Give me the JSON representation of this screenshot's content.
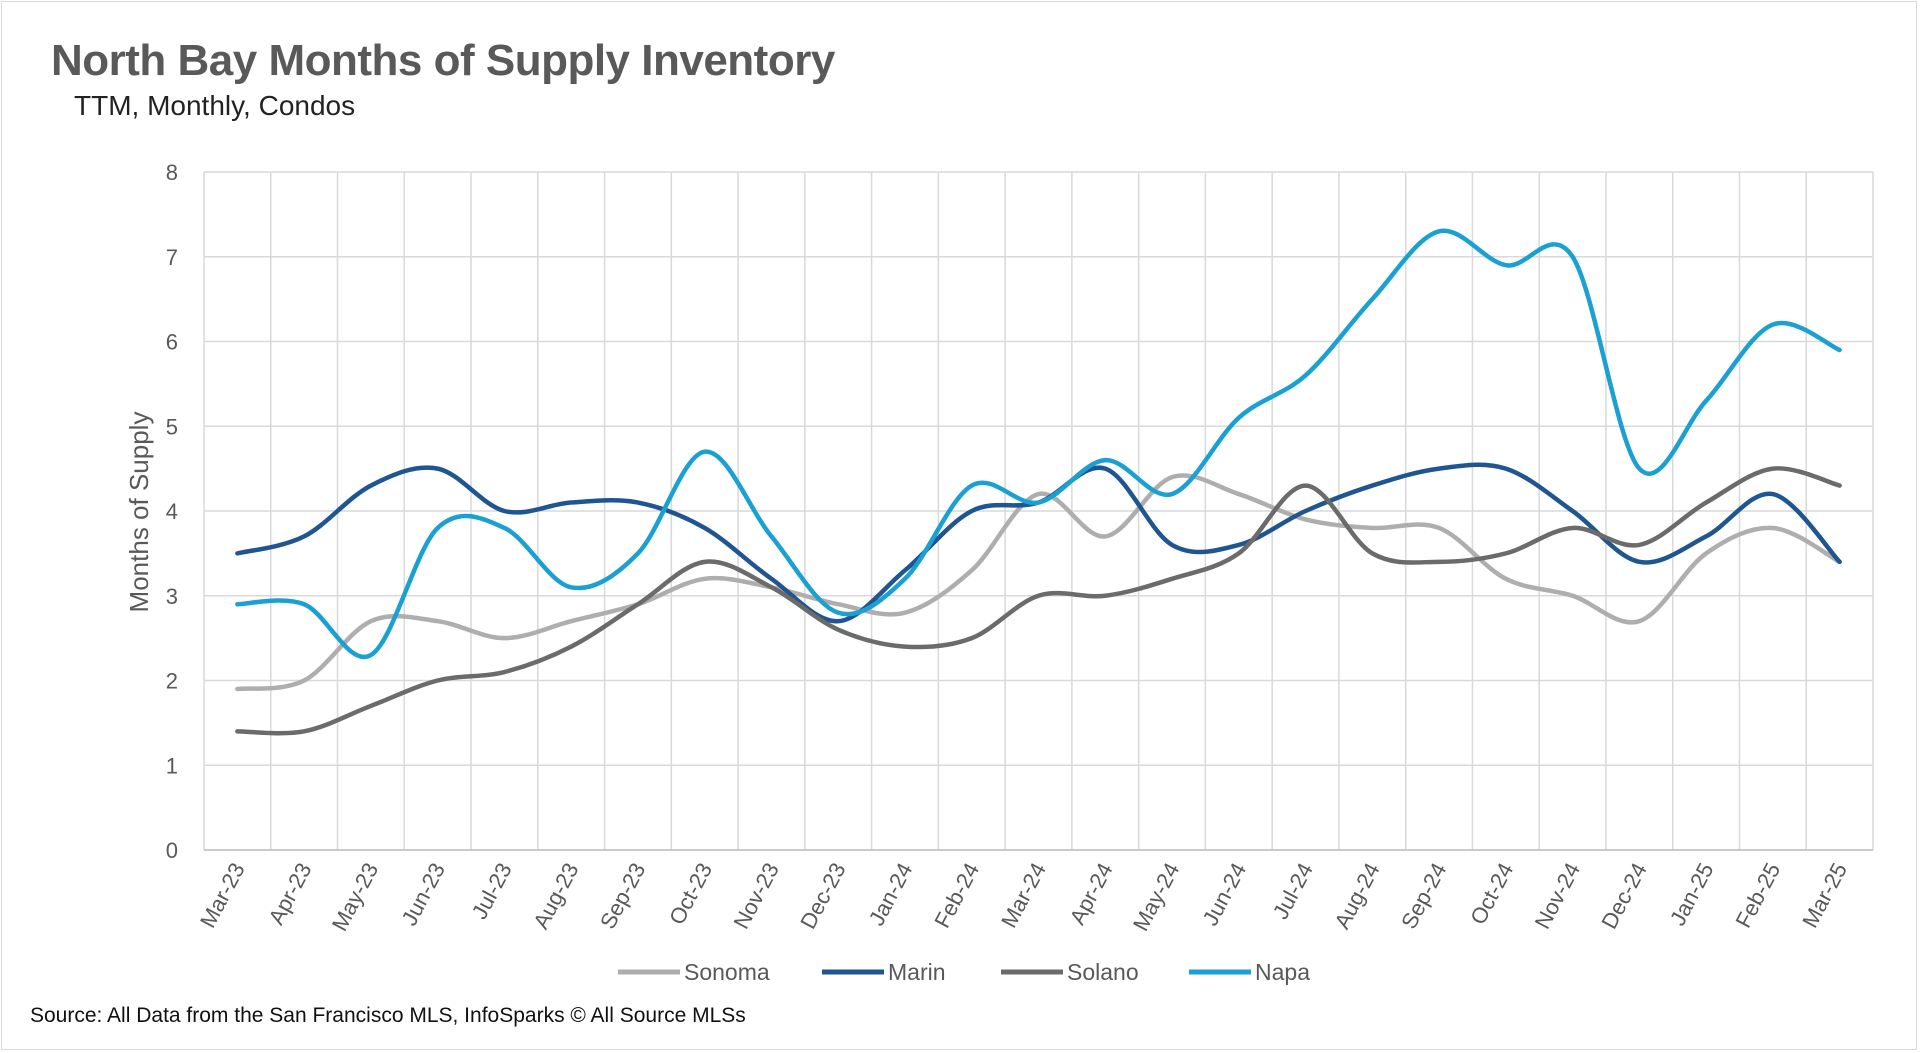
{
  "title": "North Bay Months of Supply Inventory",
  "subtitle": "TTM, Monthly, Condos",
  "source": "Source: All Data from the San Francisco MLS, InfoSparks © All Source MLSs",
  "chart_data": {
    "type": "line",
    "ylabel": "Months of Supply",
    "ylim": [
      0,
      8
    ],
    "yticks": [
      "0",
      "1",
      "2",
      "3",
      "4",
      "5",
      "6",
      "7",
      "8"
    ],
    "grid": true,
    "legend_position": "bottom",
    "categories": [
      "Mar-23",
      "Apr-23",
      "May-23",
      "Jun-23",
      "Jul-23",
      "Aug-23",
      "Sep-23",
      "Oct-23",
      "Nov-23",
      "Dec-23",
      "Jan-24",
      "Feb-24",
      "Mar-24",
      "Apr-24",
      "May-24",
      "Jun-24",
      "Jul-24",
      "Aug-24",
      "Sep-24",
      "Oct-24",
      "Nov-24",
      "Dec-24",
      "Jan-25",
      "Feb-25",
      "Mar-25"
    ],
    "series": [
      {
        "name": "Sonoma",
        "color": "#aeaeae",
        "values": [
          1.9,
          2.0,
          2.7,
          2.7,
          2.5,
          2.7,
          2.9,
          3.2,
          3.1,
          2.9,
          2.8,
          3.3,
          4.2,
          3.7,
          4.4,
          4.2,
          3.9,
          3.8,
          3.8,
          3.2,
          3.0,
          2.7,
          3.5,
          3.8,
          3.4
        ]
      },
      {
        "name": "Marin",
        "color": "#1f5591",
        "values": [
          3.5,
          3.7,
          4.3,
          4.5,
          4.0,
          4.1,
          4.1,
          3.8,
          3.2,
          2.7,
          3.3,
          4.0,
          4.1,
          4.5,
          3.6,
          3.6,
          4.0,
          4.3,
          4.5,
          4.5,
          4.0,
          3.4,
          3.7,
          4.2,
          3.4
        ]
      },
      {
        "name": "Solano",
        "color": "#6b6b6b",
        "values": [
          1.4,
          1.4,
          1.7,
          2.0,
          2.1,
          2.4,
          2.9,
          3.4,
          3.1,
          2.6,
          2.4,
          2.5,
          3.0,
          3.0,
          3.2,
          3.5,
          4.3,
          3.5,
          3.4,
          3.5,
          3.8,
          3.6,
          4.1,
          4.5,
          4.3
        ]
      },
      {
        "name": "Napa",
        "color": "#1aa0d2",
        "values": [
          2.9,
          2.9,
          2.3,
          3.8,
          3.8,
          3.1,
          3.5,
          4.7,
          3.7,
          2.8,
          3.2,
          4.3,
          4.1,
          4.6,
          4.2,
          5.1,
          5.6,
          6.5,
          7.3,
          6.9,
          7.0,
          4.5,
          5.3,
          6.2,
          5.9
        ]
      }
    ]
  }
}
